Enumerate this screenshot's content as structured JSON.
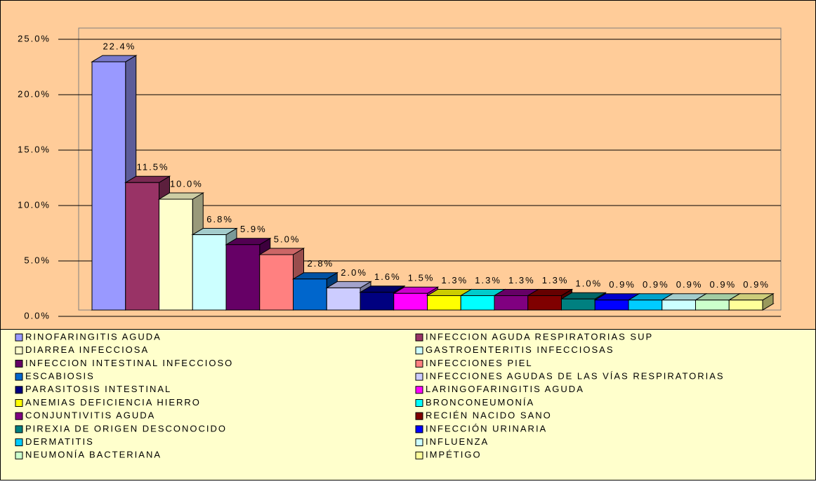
{
  "chart_data": {
    "type": "bar3d",
    "categories": [
      "RINOFARINGITIS AGUDA",
      "INFECCION AGUDA RESPIRATORIAS SUP",
      "DIARREA INFECCIOSA",
      "GASTROENTERITIS INFECCIOSAS",
      "INFECCION INTESTINAL INFECCIOSO",
      "INFECCIONES PIEL",
      "ESCABIOSIS",
      "INFECCIONES AGUDAS DE LAS VÍAS RESPIRATORIAS",
      "PARASITOSIS INTESTINAL",
      "LARINGOFARINGITIS AGUDA",
      "ANEMIAS DEFICIENCIA HIERRO",
      "BRONCONEUMONÍA",
      "CONJUNTIVITIS AGUDA",
      "RECIÉN NACIDO SANO",
      "PIREXIA DE ORIGEN DESCONOCIDO",
      "INFECCIÓN URINARIA",
      "DERMATITIS",
      "INFLUENZA",
      "NEUMONÍA BACTERIANA",
      "IMPÉTIGO"
    ],
    "values": [
      22.4,
      11.5,
      10.0,
      6.8,
      5.9,
      5.0,
      2.8,
      2.0,
      1.6,
      1.5,
      1.3,
      1.3,
      1.3,
      1.3,
      1.0,
      0.9,
      0.9,
      0.9,
      0.9,
      0.9
    ],
    "value_labels": [
      "22.4%",
      "11.5%",
      "10.0%",
      "6.8%",
      "5.9%",
      "5.0%",
      "2.8%",
      "2.0%",
      "1.6%",
      "1.5%",
      "1.3%",
      "1.3%",
      "1.3%",
      "1.3%",
      "1.0%",
      "0.9%",
      "0.9%",
      "0.9%",
      "0.9%",
      "0.9%"
    ],
    "colors": [
      "#9999ff",
      "#993366",
      "#ffffcc",
      "#ccffff",
      "#660066",
      "#ff8080",
      "#0066cc",
      "#ccccff",
      "#000080",
      "#ff00ff",
      "#ffff00",
      "#00ffff",
      "#800080",
      "#800000",
      "#008080",
      "#0000ff",
      "#00ccff",
      "#ccffff",
      "#ccffcc",
      "#ffff99"
    ],
    "ylim": [
      0,
      25
    ],
    "yticks": [
      {
        "value": 0,
        "label": "0.0%"
      },
      {
        "value": 5,
        "label": "5.0%"
      },
      {
        "value": 10,
        "label": "10.0%"
      },
      {
        "value": 15,
        "label": "15.0%"
      },
      {
        "value": 20,
        "label": "20.0%"
      },
      {
        "value": 25,
        "label": "25.0%"
      }
    ],
    "grid": true,
    "legend": "bottom"
  }
}
